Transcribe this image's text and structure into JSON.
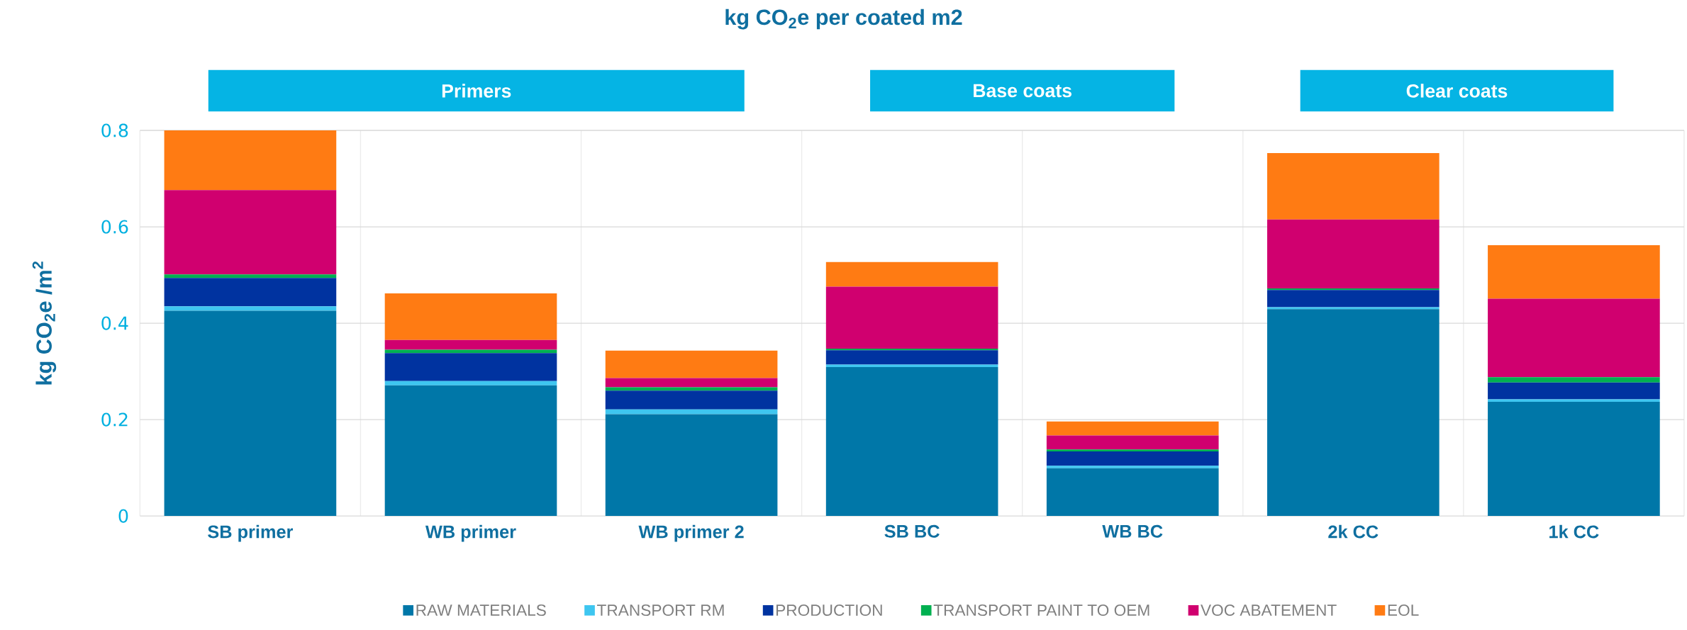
{
  "chart_data": {
    "type": "bar",
    "stacked": true,
    "title": "kg CO$_{2}$e per coated m2",
    "ylabel": "kg CO$_{2}$e /m$^{2}$",
    "categories": [
      "SB primer",
      "WB primer",
      "WB primer 2",
      "SB BC",
      "WB BC",
      "2k CC",
      "1k CC"
    ],
    "series": [
      {
        "name": "RAW MATERIALS",
        "color": "#0077a8",
        "values": [
          0.426,
          0.271,
          0.211,
          0.309,
          0.099,
          0.429,
          0.237
        ]
      },
      {
        "name": "TRANSPORT RM",
        "color": "#3ec6f0",
        "values": [
          0.009,
          0.009,
          0.01,
          0.005,
          0.005,
          0.004,
          0.005
        ]
      },
      {
        "name": "PRODUCTION",
        "color": "#0033a0",
        "values": [
          0.059,
          0.058,
          0.039,
          0.03,
          0.03,
          0.036,
          0.035
        ]
      },
      {
        "name": "TRANSPORT PAINT TO OEM",
        "color": "#00b050",
        "values": [
          0.007,
          0.007,
          0.007,
          0.003,
          0.004,
          0.003,
          0.011
        ]
      },
      {
        "name": "VOC ABATEMENT",
        "color": "#d0006f",
        "values": [
          0.175,
          0.02,
          0.019,
          0.129,
          0.029,
          0.143,
          0.163
        ]
      },
      {
        "name": "EOL",
        "color": "#ff7b13",
        "values": [
          0.124,
          0.097,
          0.057,
          0.051,
          0.029,
          0.138,
          0.111
        ]
      }
    ],
    "ylim": [
      0,
      0.8
    ],
    "yticks": [
      0,
      0.2,
      0.4,
      0.6,
      0.8
    ],
    "grid": true,
    "legend": "bottom",
    "annotations": [
      "Primers",
      "Base coats",
      "Clear coats"
    ]
  }
}
